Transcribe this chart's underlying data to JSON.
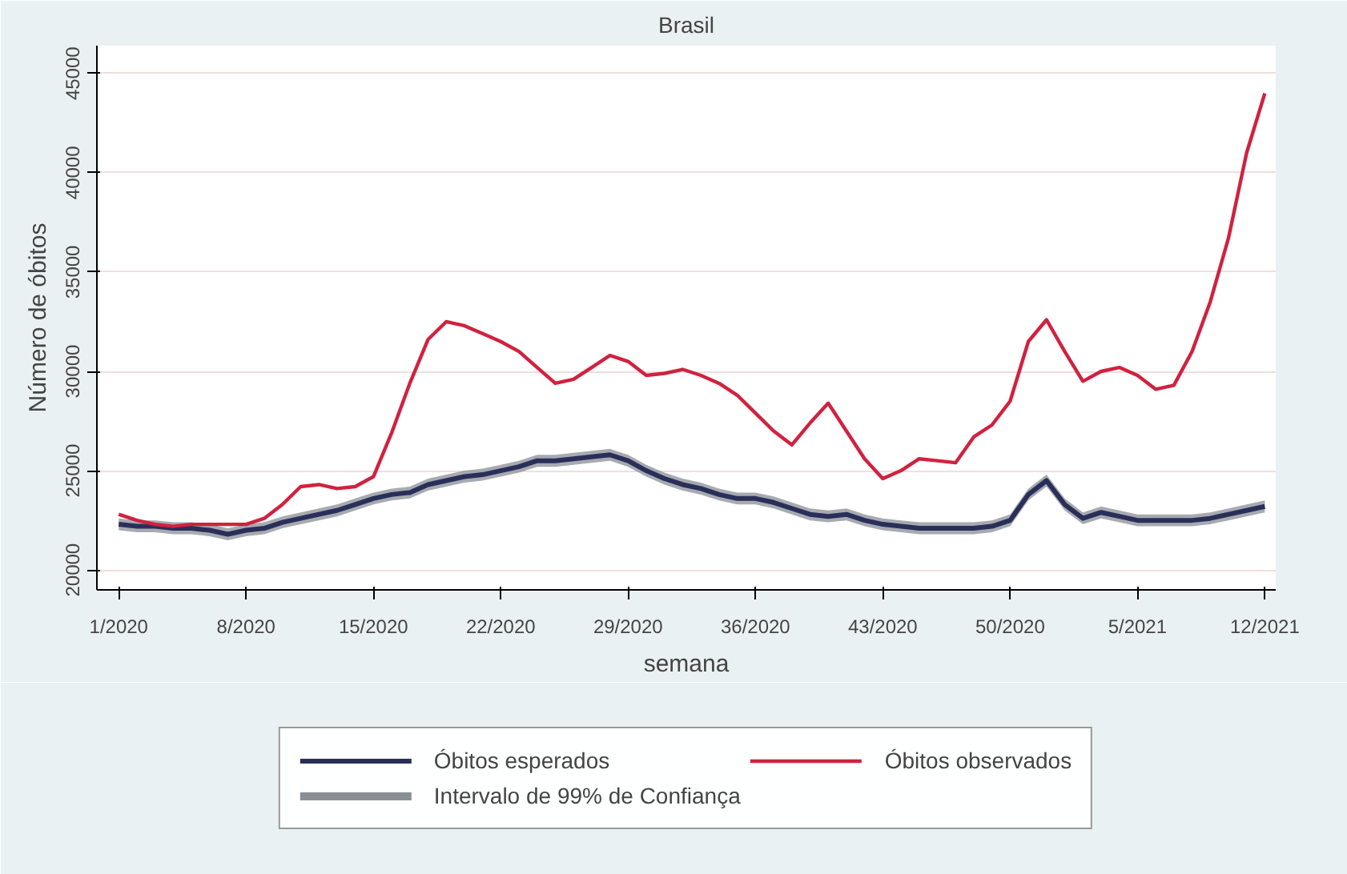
{
  "chart_data": {
    "type": "line",
    "title": "Brasil",
    "xlabel": "semana",
    "ylabel": "Número de óbitos",
    "categories": [
      "1/2020",
      null,
      null,
      null,
      null,
      null,
      null,
      "8/2020",
      null,
      null,
      null,
      null,
      null,
      null,
      "15/2020",
      null,
      null,
      null,
      null,
      null,
      null,
      "22/2020",
      null,
      null,
      null,
      null,
      null,
      null,
      "29/2020",
      null,
      null,
      null,
      null,
      null,
      null,
      "36/2020",
      null,
      null,
      null,
      null,
      null,
      null,
      "43/2020",
      null,
      null,
      null,
      null,
      null,
      null,
      "50/2020",
      null,
      null,
      null,
      null,
      null,
      null,
      "5/2021",
      null,
      null,
      null,
      null,
      null,
      null,
      "12/2021"
    ],
    "ylim": [
      19000,
      46400
    ],
    "yticks": [
      20000,
      25000,
      30000,
      35000,
      40000,
      45000
    ],
    "grid": "y",
    "legend": "bottom",
    "line_style": "solid",
    "annotations": [
      "Intervalo de 99% de Confiança"
    ],
    "series": [
      {
        "name": "Óbitos esperados",
        "color": "#2a2f5a",
        "values": [
          22300,
          22200,
          22200,
          22100,
          22100,
          22000,
          21800,
          22000,
          22100,
          22400,
          22600,
          22800,
          23000,
          23300,
          23600,
          23800,
          23900,
          24300,
          24500,
          24700,
          24800,
          25000,
          25200,
          25500,
          25500,
          25600,
          25700,
          25800,
          25500,
          25000,
          24600,
          24300,
          24100,
          23800,
          23600,
          23600,
          23400,
          23100,
          22800,
          22700,
          22800,
          22500,
          22300,
          22200,
          22100,
          22100,
          22100,
          22100,
          22200,
          22500,
          23800,
          24500,
          23300,
          22600,
          22900,
          22700,
          22500,
          22500,
          22500,
          22500,
          22600,
          22800,
          23000,
          23200
        ],
        "lower": [
          22000,
          21900,
          21900,
          21800,
          21800,
          21700,
          21500,
          21700,
          21800,
          22100,
          22300,
          22500,
          22700,
          23000,
          23300,
          23500,
          23600,
          24000,
          24200,
          24400,
          24500,
          24700,
          24900,
          25200,
          25200,
          25300,
          25400,
          25500,
          25200,
          24700,
          24300,
          24000,
          23800,
          23500,
          23300,
          23300,
          23100,
          22800,
          22500,
          22400,
          22500,
          22200,
          22000,
          21900,
          21800,
          21800,
          21800,
          21800,
          21900,
          22200,
          23500,
          24200,
          23000,
          22300,
          22600,
          22400,
          22200,
          22200,
          22200,
          22200,
          22300,
          22500,
          22700,
          22900
        ],
        "upper": [
          22600,
          22500,
          22500,
          22400,
          22400,
          22300,
          22100,
          22300,
          22400,
          22700,
          22900,
          23100,
          23300,
          23600,
          23900,
          24100,
          24200,
          24600,
          24800,
          25000,
          25100,
          25300,
          25500,
          25800,
          25800,
          25900,
          26000,
          26100,
          25800,
          25300,
          24900,
          24600,
          24400,
          24100,
          23900,
          23900,
          23700,
          23400,
          23100,
          23000,
          23100,
          22800,
          22600,
          22500,
          22400,
          22400,
          22400,
          22400,
          22500,
          22800,
          24100,
          24800,
          23600,
          22900,
          23200,
          23000,
          22800,
          22800,
          22800,
          22800,
          22900,
          23100,
          23300,
          23500
        ]
      },
      {
        "name": "Óbitos observados",
        "color": "#d0223f",
        "values": [
          22800,
          22500,
          22300,
          22200,
          22300,
          22300,
          22300,
          22300,
          22600,
          23300,
          24200,
          24300,
          24100,
          24200,
          24700,
          26900,
          29400,
          31600,
          32500,
          32300,
          31900,
          31500,
          31000,
          30200,
          29400,
          29600,
          30200,
          30800,
          30500,
          29800,
          29900,
          30100,
          29800,
          29400,
          28800,
          27900,
          27000,
          26300,
          27400,
          28400,
          27000,
          25600,
          24600,
          25000,
          25600,
          25500,
          25400,
          26700,
          27300,
          28500,
          31500,
          32600,
          31000,
          29500,
          30000,
          30200,
          29800,
          29100,
          29300,
          31000,
          33500,
          36700,
          41000,
          44000
        ]
      }
    ]
  }
}
